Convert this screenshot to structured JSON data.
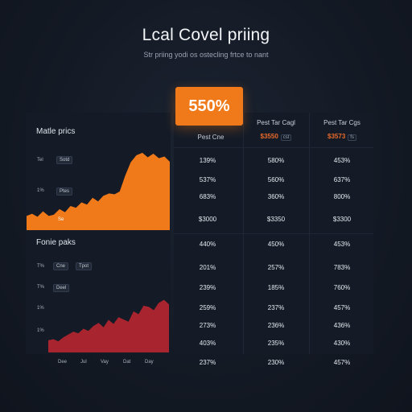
{
  "header": {
    "title": "Lcal Covel priing",
    "subtitle": "Str priing yodi os ostecling frtce to nant"
  },
  "highlight": {
    "value": "550%",
    "color": "#f07a1a"
  },
  "table": {
    "columns": [
      {
        "label": "Pest Cne",
        "price": "",
        "tag": ""
      },
      {
        "label": "Pest Tar Cagl",
        "price": "$3550",
        "tag": "cst"
      },
      {
        "label": "Pest Tar Cgs",
        "price": "$3573",
        "tag": "fs"
      }
    ],
    "rows": [
      [
        "139%",
        "580%",
        "453%"
      ],
      [
        "537%",
        "560%",
        "637%"
      ],
      [
        "683%",
        "360%",
        "800%"
      ],
      [
        "$3000",
        "$3350",
        "$3300"
      ],
      [
        "440%",
        "450%",
        "453%"
      ],
      [
        "201%",
        "257%",
        "783%"
      ],
      [
        "239%",
        "185%",
        "760%"
      ],
      [
        "259%",
        "237%",
        "457%"
      ],
      [
        "273%",
        "236%",
        "436%"
      ],
      [
        "403%",
        "235%",
        "430%"
      ],
      [
        "237%",
        "230%",
        "457%"
      ]
    ]
  },
  "chart_top": {
    "title": "Matle prics",
    "yticks": [
      "Tel",
      "1%"
    ],
    "chips": [
      "Sotd",
      "Ptes"
    ],
    "inline_label": "Se",
    "color": "#f07a1a"
  },
  "chart_bottom": {
    "title": "Fonie paks",
    "yticks": [
      "T%",
      "T%",
      "1%",
      "1%"
    ],
    "chips": [
      "Cne",
      "Tpot",
      "Deel"
    ],
    "xticks": [
      "Dee",
      "Jul",
      "Vay",
      "Dat",
      "Day"
    ],
    "color": "#a8242e"
  },
  "chart_data": [
    {
      "type": "area",
      "title": "Matle prics",
      "values": [
        30,
        35,
        28,
        40,
        30,
        33,
        45,
        38,
        52,
        48,
        60,
        55,
        70,
        62,
        75,
        80,
        78,
        85,
        120,
        150,
        165,
        170,
        160,
        168,
        158,
        162,
        150
      ]
    },
    {
      "type": "area",
      "title": "Fonie paks",
      "values": [
        20,
        22,
        18,
        25,
        30,
        35,
        32,
        40,
        36,
        45,
        50,
        42,
        55,
        48,
        60,
        56,
        52,
        70,
        65,
        80,
        78,
        72,
        85,
        90,
        82
      ]
    }
  ]
}
